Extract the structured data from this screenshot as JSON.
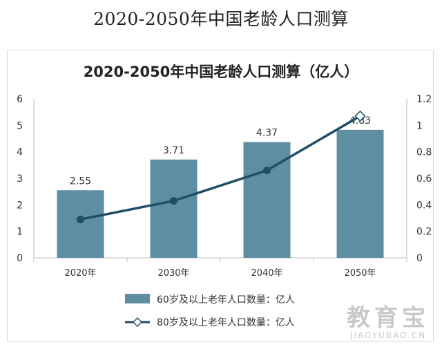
{
  "page": {
    "title": "2020-2050年中国老龄人口测算"
  },
  "watermark": {
    "text_cn": "教育宝",
    "text_en": "JIAOYUBAO.CN"
  },
  "colors": {
    "bar": "#5f8ea3",
    "line": "#1f4e66",
    "axis": "#bfbfbf",
    "text": "#333333"
  },
  "chart_data": {
    "type": "bar",
    "title": "2020-2050年中国老龄人口测算（亿人）",
    "categories": [
      "2020年",
      "2030年",
      "2040年",
      "2050年"
    ],
    "ylim": [
      0,
      6
    ],
    "y_ticks": [
      "0",
      "1",
      "2",
      "3",
      "4",
      "5",
      "6"
    ],
    "y2lim": [
      0,
      1.2
    ],
    "y2_ticks": [
      "0",
      "0.2",
      "0.4",
      "0.6",
      "0.8",
      "1",
      "1.2"
    ],
    "grid": false,
    "legend_position": "bottom",
    "series": [
      {
        "name": "60岁及以上老年人口数量：亿人",
        "type": "bar",
        "axis": "left",
        "values": [
          2.55,
          3.71,
          4.37,
          4.83
        ],
        "labels": [
          "2.55",
          "3.71",
          "4.37",
          "4.83"
        ]
      },
      {
        "name": "80岁及以上老年人口数量：亿人",
        "type": "line",
        "axis": "right",
        "values": [
          0.29,
          0.43,
          0.66,
          1.07
        ]
      }
    ]
  }
}
